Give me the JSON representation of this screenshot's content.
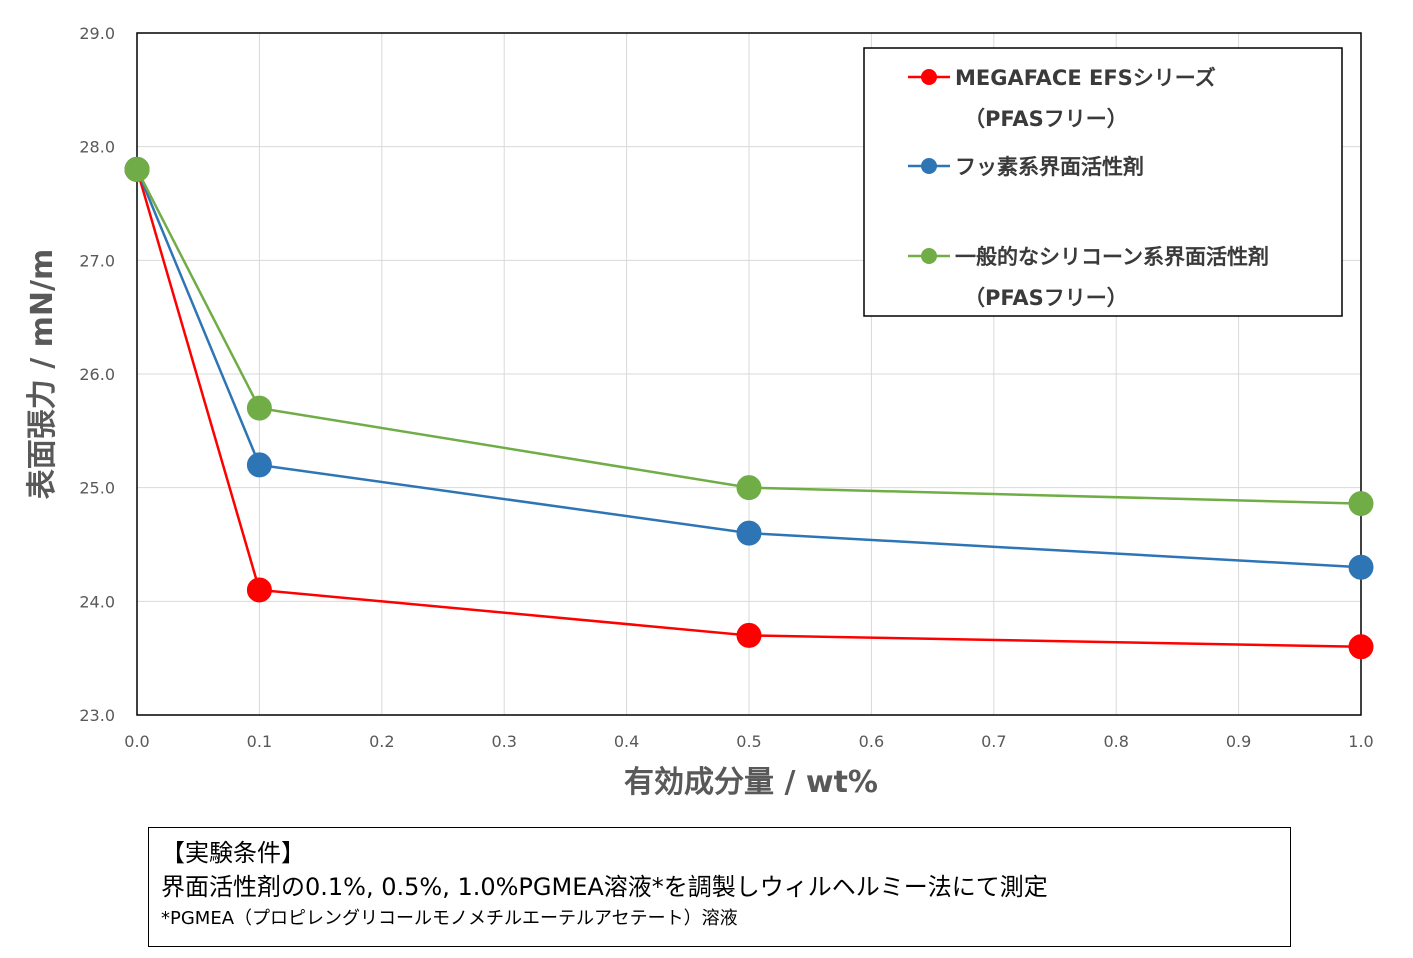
{
  "chart_data": {
    "type": "line",
    "x": [
      0.0,
      0.1,
      0.5,
      1.0
    ],
    "series": [
      {
        "name": "MEGAFACE EFSシリーズ（PFASフリー）",
        "name_lines": [
          "MEGAFACE EFSシリーズ",
          "（PFASフリー）"
        ],
        "color": "#ff0000",
        "values": [
          27.8,
          24.1,
          23.7,
          23.6
        ]
      },
      {
        "name": "フッ素系界面活性剤",
        "name_lines": [
          "フッ素系界面活性剤"
        ],
        "color": "#2e75b6",
        "values": [
          27.8,
          25.2,
          24.6,
          24.3
        ]
      },
      {
        "name": "一般的なシリコーン系界面活性剤（PFASフリー）",
        "name_lines": [
          "一般的なシリコーン系界面活性剤",
          "（PFASフリー）"
        ],
        "color": "#70ad47",
        "values": [
          27.8,
          25.7,
          25.0,
          24.86
        ]
      }
    ],
    "xlabel": "有効成分量  /  wt%",
    "ylabel": "表面張力  /  mN/m",
    "xlim": [
      0.0,
      1.0
    ],
    "ylim": [
      23.0,
      29.0
    ],
    "x_ticks": [
      "0.0",
      "0.1",
      "0.2",
      "0.3",
      "0.4",
      "0.5",
      "0.6",
      "0.7",
      "0.8",
      "0.9",
      "1.0"
    ],
    "y_ticks": [
      "23.0",
      "24.0",
      "25.0",
      "26.0",
      "27.0",
      "28.0",
      "29.0"
    ],
    "grid": true,
    "legend_position": "top-right"
  },
  "conditions": {
    "title": "【実験条件】",
    "line1": "界面活性剤の0.1%, 0.5%, 1.0%PGMEA溶液*を調製しウィルヘルミー法にて測定",
    "line2": "*PGMEA（プロピレングリコールモノメチルエーテルアセテート）溶液"
  }
}
